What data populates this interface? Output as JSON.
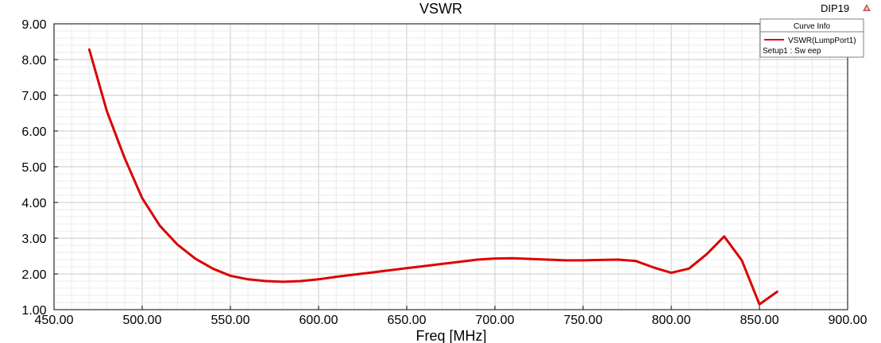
{
  "chart_data": {
    "type": "line",
    "title": "VSWR",
    "xlabel": "Freq [MHz]",
    "ylabel": "",
    "xlim": [
      450,
      900
    ],
    "ylim": [
      1,
      9
    ],
    "x_ticks": [
      "450.00",
      "500.00",
      "550.00",
      "600.00",
      "650.00",
      "700.00",
      "750.00",
      "800.00",
      "850.00",
      "900.00"
    ],
    "y_ticks": [
      "1.00",
      "2.00",
      "3.00",
      "4.00",
      "5.00",
      "6.00",
      "7.00",
      "8.00",
      "9.00"
    ],
    "x_tick_values": [
      450,
      500,
      550,
      600,
      650,
      700,
      750,
      800,
      850,
      900
    ],
    "y_tick_values": [
      1,
      2,
      3,
      4,
      5,
      6,
      7,
      8,
      9
    ],
    "grid": true,
    "legend_position": "top-right",
    "series": [
      {
        "name": "VSWR(LumpPort1)",
        "color": "#dc0000",
        "x": [
          470,
          480,
          490,
          500,
          510,
          520,
          530,
          540,
          550,
          560,
          570,
          580,
          590,
          600,
          610,
          620,
          630,
          640,
          650,
          660,
          670,
          680,
          690,
          700,
          710,
          720,
          730,
          740,
          750,
          760,
          770,
          780,
          790,
          800,
          810,
          820,
          830,
          840,
          850,
          860
        ],
        "y": [
          8.28,
          6.55,
          5.25,
          4.12,
          3.35,
          2.82,
          2.43,
          2.15,
          1.95,
          1.85,
          1.8,
          1.78,
          1.8,
          1.85,
          1.92,
          1.98,
          2.04,
          2.1,
          2.16,
          2.22,
          2.28,
          2.34,
          2.4,
          2.43,
          2.44,
          2.42,
          2.4,
          2.38,
          2.38,
          2.39,
          2.4,
          2.36,
          2.18,
          2.03,
          2.15,
          2.55,
          3.05,
          2.38,
          1.15,
          1.5
        ]
      }
    ]
  },
  "badge": {
    "label": "DIP19",
    "icon": "warning-triangle-icon",
    "icon_color": "#c0504d"
  },
  "legend": {
    "header": "Curve Info",
    "entry_label": "VSWR(LumpPort1)",
    "entry_sub": "Setup1 : Sw eep"
  },
  "colors": {
    "curve": "#dc0000",
    "grid": "#d4d4d4",
    "axis": "#000000"
  }
}
